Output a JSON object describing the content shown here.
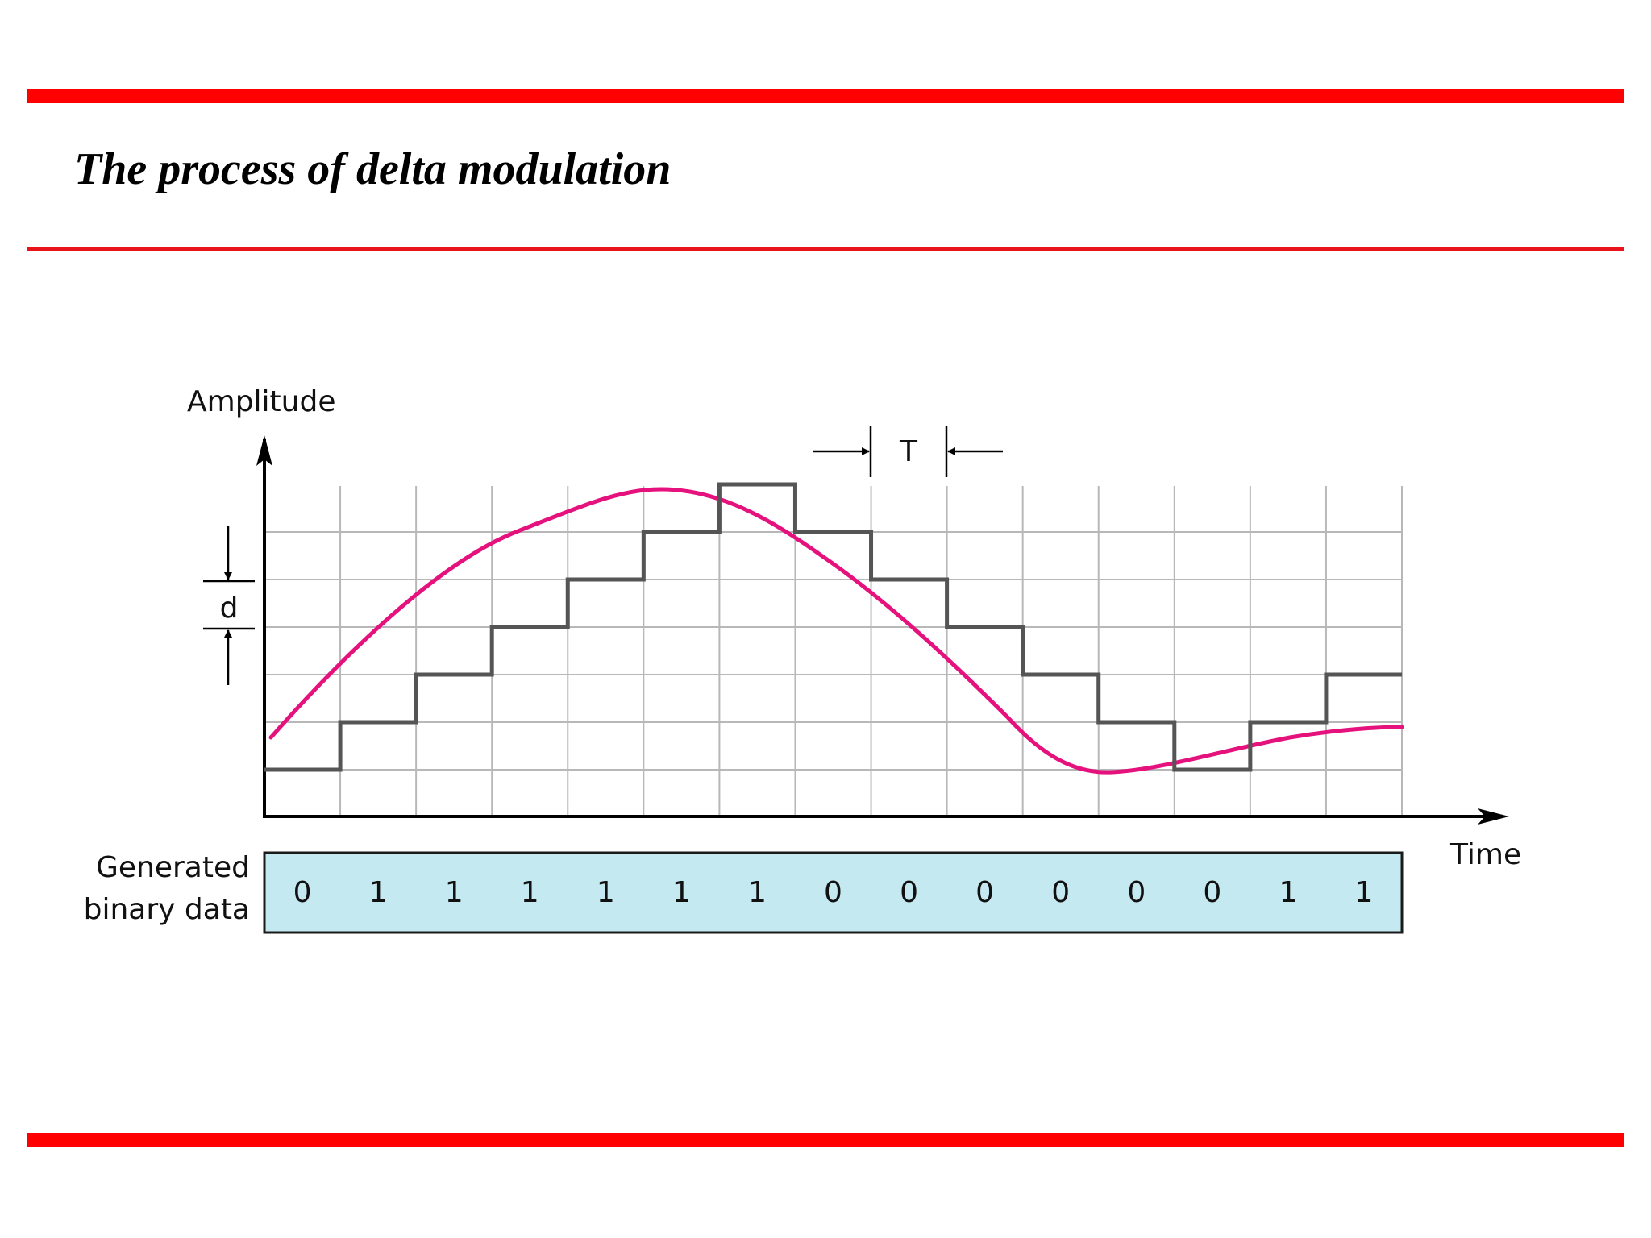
{
  "slide": {
    "title": "The process of delta modulation"
  },
  "diagram": {
    "labels": {
      "amplitude_axis": "Amplitude",
      "time_axis": "Time",
      "period_marker": "T",
      "step_marker": "d",
      "data_row_line1": "Generated",
      "data_row_line2": "binary data"
    },
    "bits": [
      "0",
      "1",
      "1",
      "1",
      "1",
      "1",
      "1",
      "0",
      "0",
      "0",
      "0",
      "0",
      "0",
      "1",
      "1"
    ],
    "staircase_levels": [
      0,
      1,
      2,
      3,
      4,
      5,
      6,
      5,
      4,
      3,
      2,
      1,
      0,
      1,
      2
    ],
    "grid": {
      "columns": 15,
      "rows": 7
    },
    "colors": {
      "signal": "#e5127d",
      "staircase": "#555555",
      "grid": "#b8b8b8",
      "data_fill": "#c4e9f1",
      "rules": "#ff0000"
    }
  }
}
